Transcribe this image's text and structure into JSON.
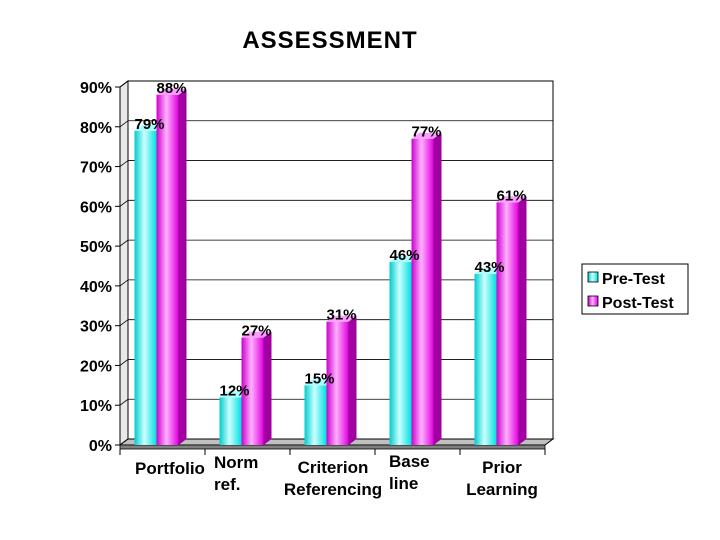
{
  "chart_data": {
    "type": "bar",
    "title": "ASSESSMENT",
    "xlabel": "",
    "ylabel": "",
    "categories": [
      "Portfolio",
      "Norm ref.",
      "Criterion Referencing",
      "Base line",
      "Prior Learning"
    ],
    "category_lines": [
      [
        "Portfolio"
      ],
      [
        "Norm",
        "ref."
      ],
      [
        "Criterion",
        "Referencing"
      ],
      [
        "Base",
        "line"
      ],
      [
        "Prior",
        "Learning"
      ]
    ],
    "series": [
      {
        "name": "Pre-Test",
        "values": [
          79,
          12,
          15,
          46,
          43
        ],
        "labels": [
          "79%",
          "12%",
          "15%",
          "46%",
          "43%"
        ]
      },
      {
        "name": "Post-Test",
        "values": [
          88,
          27,
          31,
          77,
          61
        ],
        "labels": [
          "88%",
          "27%",
          "31%",
          "77%",
          "61%"
        ]
      }
    ],
    "ylim": [
      0,
      90
    ],
    "y_ticks": [
      0,
      10,
      20,
      30,
      40,
      50,
      60,
      70,
      80,
      90
    ],
    "y_tick_labels": [
      "0%",
      "10%",
      "20%",
      "30%",
      "40%",
      "50%",
      "60%",
      "70%",
      "80%",
      "90%"
    ],
    "grid": true,
    "legend_position": "right",
    "colors": {
      "pre_test": "#33ffff",
      "post_test": "#ff33ff"
    }
  }
}
